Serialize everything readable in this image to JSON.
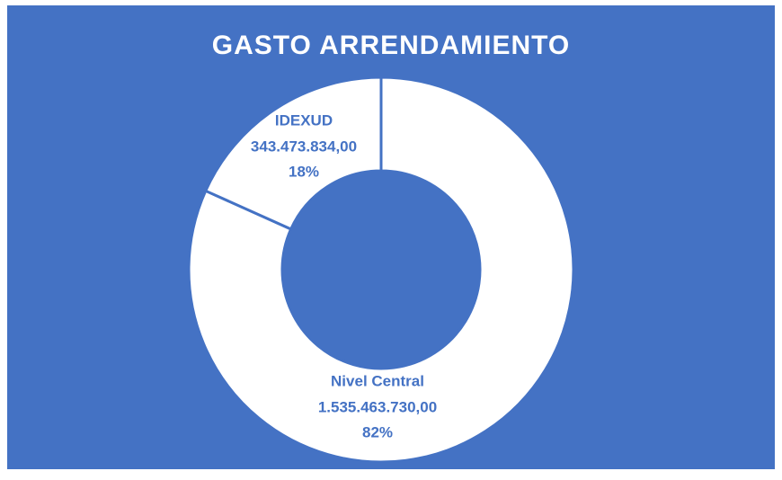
{
  "chart_data": {
    "type": "donut",
    "title": "GASTO ARRENDAMIENTO",
    "categories": [
      "Nivel Central",
      "IDEXUD"
    ],
    "values": [
      1535463730.0,
      343473834.0
    ],
    "value_labels": [
      "1.535.463.730,00",
      "343.473.834,00"
    ],
    "percent_labels": [
      "82%",
      "18%"
    ],
    "colors": [
      "#ffffff",
      "#ffffff"
    ],
    "background": "#4472c4"
  }
}
